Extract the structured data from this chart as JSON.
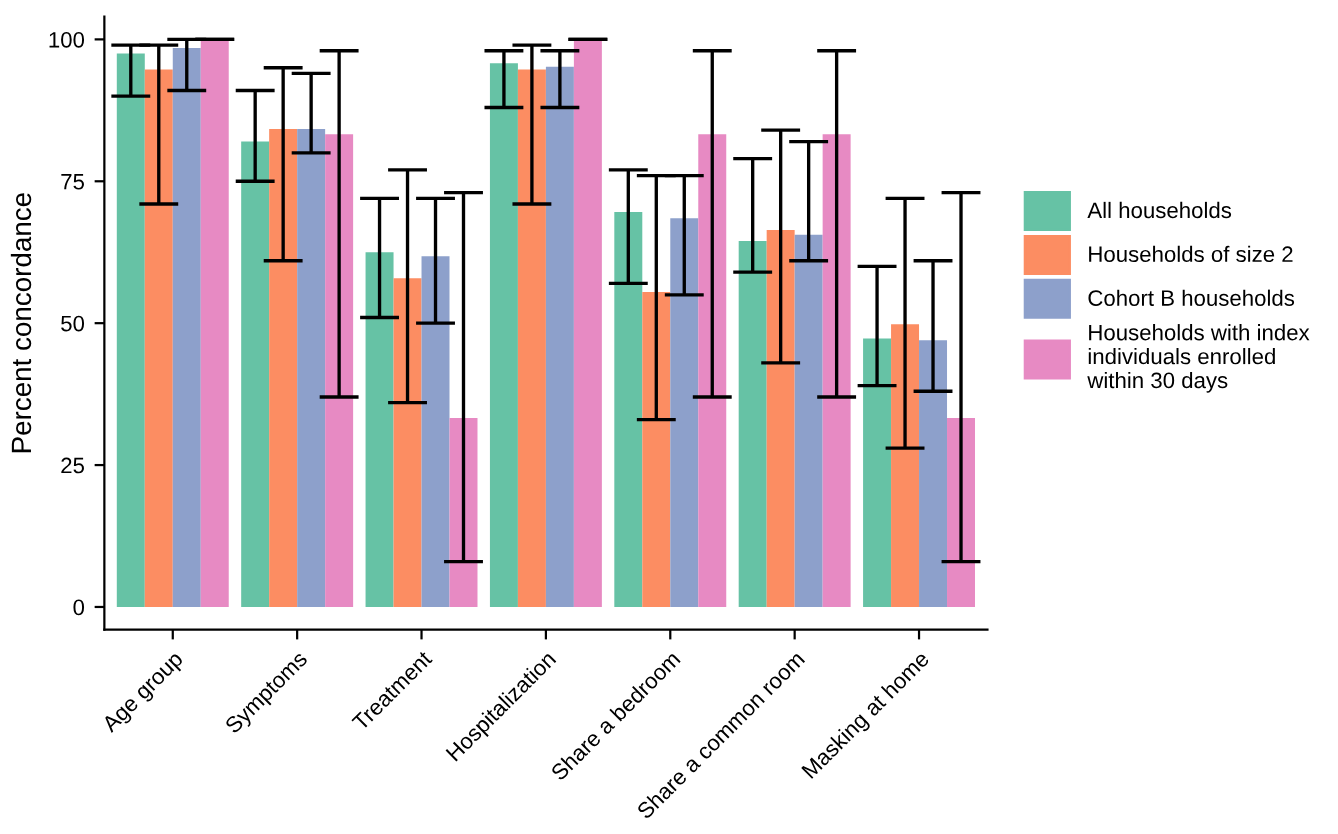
{
  "chart_data": {
    "type": "bar",
    "ylabel": "Percent concordance",
    "categories": [
      "Age group",
      "Symptoms",
      "Treatment",
      "Hospitalization",
      "Share a bedroom",
      "Share a common room",
      "Masking at home"
    ],
    "series": [
      {
        "name": "All households",
        "color": "#66c2a5",
        "values": [
          97.5,
          82,
          62.5,
          95.8,
          69.6,
          64.5,
          47.3
        ],
        "errors": [
          [
            90,
            99
          ],
          [
            75,
            91
          ],
          [
            51,
            72
          ],
          [
            88,
            98
          ],
          [
            57,
            77
          ],
          [
            59,
            79
          ],
          [
            39,
            60
          ]
        ]
      },
      {
        "name": "Households of size 2",
        "color": "#fc8d62",
        "values": [
          94.7,
          84.2,
          57.9,
          94.7,
          55.5,
          66.4,
          49.8
        ],
        "errors": [
          [
            71,
            99
          ],
          [
            61,
            95
          ],
          [
            36,
            77
          ],
          [
            71,
            99
          ],
          [
            33,
            76
          ],
          [
            43,
            84
          ],
          [
            28,
            72
          ]
        ]
      },
      {
        "name": "Cohort B households",
        "color": "#8da0cb",
        "values": [
          98.5,
          84.2,
          61.8,
          95.2,
          68.5,
          65.6,
          47
        ],
        "errors": [
          [
            91,
            100
          ],
          [
            80,
            94
          ],
          [
            50,
            72
          ],
          [
            88,
            98
          ],
          [
            55,
            76
          ],
          [
            61,
            82
          ],
          [
            38,
            61
          ]
        ]
      },
      {
        "name": "Households with index individuals enrolled within 30 days",
        "color": "#e78ac3",
        "values": [
          100,
          83.3,
          33.3,
          100,
          83.3,
          83.3,
          33.3
        ],
        "errors": [
          [
            100,
            100
          ],
          [
            37,
            98
          ],
          [
            8,
            73
          ],
          [
            100,
            100
          ],
          [
            37,
            98
          ],
          [
            37,
            98
          ],
          [
            8,
            73
          ]
        ]
      }
    ],
    "ylim": [
      -4,
      104
    ],
    "yticks": [
      0,
      25,
      50,
      75,
      100
    ],
    "grid": false,
    "legend": "right"
  }
}
